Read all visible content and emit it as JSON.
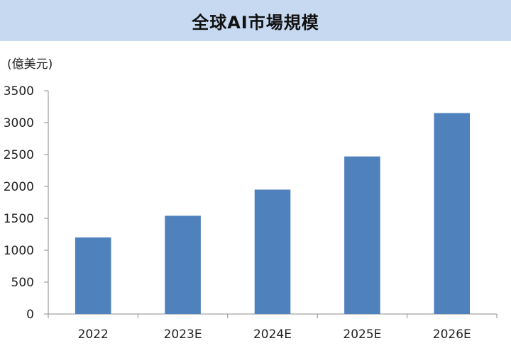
{
  "header": {
    "title": "全球AI市場規模"
  },
  "chart_data": {
    "type": "bar",
    "title": "全球AI市場規模",
    "unit_label": "(億美元)",
    "categories": [
      "2022",
      "2023E",
      "2024E",
      "2025E",
      "2026E"
    ],
    "values": [
      1200,
      1540,
      1950,
      2470,
      3150
    ],
    "ylim": [
      0,
      3500
    ],
    "yticks": [
      0,
      500,
      1000,
      1500,
      2000,
      2500,
      3000,
      3500
    ],
    "grid": false,
    "bar_color": "#4f81bd",
    "header_color": "#c6d9f1"
  }
}
